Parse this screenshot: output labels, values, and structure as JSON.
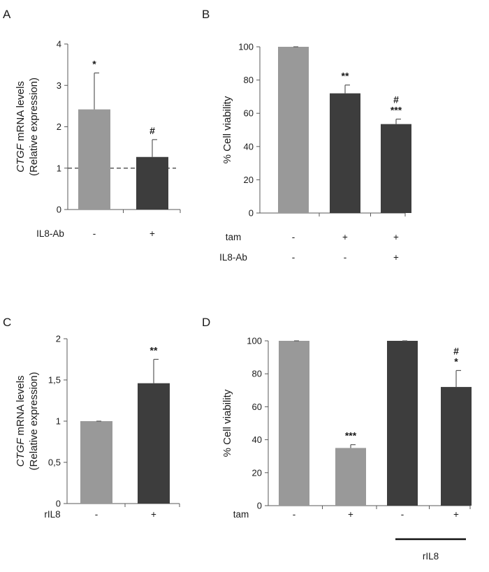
{
  "colors": {
    "light_bar": "#999999",
    "dark_bar": "#3d3d3d",
    "axis": "#595959",
    "errorbar": "#595959",
    "dashed_line": "#595959"
  },
  "chart_data": [
    {
      "panel": "A",
      "type": "bar",
      "ylabel_italic": "CTGF",
      "ylabel_rest": " mRNA levels",
      "ylabel_line2": "(Relative expression)",
      "ylim": [
        0,
        4
      ],
      "yticks": [
        "0",
        "1",
        "2",
        "3",
        "4"
      ],
      "reference_line": 1,
      "values": [
        2.42,
        1.27
      ],
      "errors": [
        0.88,
        0.42
      ],
      "bar_colors": [
        "light",
        "dark"
      ],
      "annotations": [
        [
          "*"
        ],
        [
          "#"
        ]
      ],
      "conditions": [
        {
          "label": "IL8-Ab",
          "values": [
            "-",
            "+"
          ]
        }
      ]
    },
    {
      "panel": "B",
      "type": "bar",
      "ylabel": "% Cell viability",
      "ylim": [
        0,
        100
      ],
      "yticks": [
        "0",
        "20",
        "40",
        "60",
        "80",
        "100"
      ],
      "values": [
        100,
        72,
        53.5
      ],
      "errors": [
        0,
        5,
        3
      ],
      "bar_colors": [
        "light",
        "dark",
        "dark"
      ],
      "annotations": [
        [],
        [
          "**"
        ],
        [
          "#",
          "***"
        ]
      ],
      "conditions": [
        {
          "label": "tam",
          "values": [
            "-",
            "+",
            "+"
          ]
        },
        {
          "label": "IL8-Ab",
          "values": [
            "-",
            "-",
            "+"
          ]
        }
      ]
    },
    {
      "panel": "C",
      "type": "bar",
      "ylabel_italic": "CTGF",
      "ylabel_rest": " mRNA levels",
      "ylabel_line2": "(Relative expression)",
      "ylim": [
        0,
        2
      ],
      "yticks": [
        "0",
        "0,5",
        "1",
        "1,5",
        "2"
      ],
      "values": [
        1.0,
        1.46
      ],
      "errors": [
        0,
        0.29
      ],
      "bar_colors": [
        "light",
        "dark"
      ],
      "annotations": [
        [],
        [
          "**"
        ]
      ],
      "conditions": [
        {
          "label": "rIL8",
          "values": [
            "-",
            "+"
          ]
        }
      ]
    },
    {
      "panel": "D",
      "type": "bar",
      "ylabel": "% Cell viability",
      "ylim": [
        0,
        100
      ],
      "yticks": [
        "0",
        "20",
        "40",
        "60",
        "80",
        "100"
      ],
      "values": [
        100,
        35,
        100,
        72
      ],
      "errors": [
        0,
        2,
        0,
        10
      ],
      "bar_colors": [
        "light",
        "light",
        "dark",
        "dark"
      ],
      "annotations": [
        [],
        [
          "***"
        ],
        [],
        [
          "#",
          "*"
        ]
      ],
      "conditions": [
        {
          "label": "tam",
          "values": [
            "-",
            "+",
            "-",
            "+"
          ]
        }
      ],
      "group_label": "rIL8"
    }
  ]
}
